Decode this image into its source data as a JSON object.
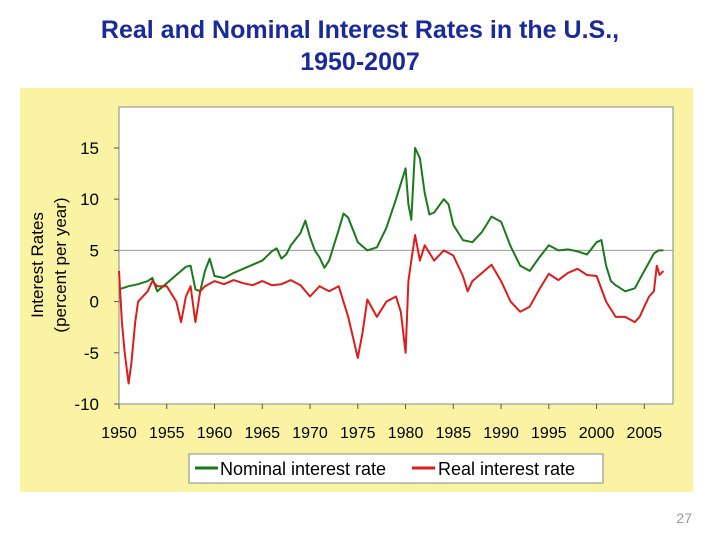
{
  "slide": {
    "title_line1": "Real and Nominal Interest Rates in the U.S.,",
    "title_line2": "1950-2007",
    "page_number": "27"
  },
  "colors": {
    "title": "#1a2a9a",
    "panel_background": "#fbf3a4",
    "plot_background": "#ffffff",
    "nominal": "#1a7a1a",
    "real": "#dd1c1c"
  },
  "chart_data": {
    "type": "line",
    "title": "",
    "xlabel": "",
    "ylabel": [
      "Interest Rates",
      "(percent per year)"
    ],
    "xlim": [
      1950,
      2008
    ],
    "ylim": [
      -10,
      19
    ],
    "x_tick_labels": [
      "1950",
      "1955",
      "1960",
      "1965",
      "1970",
      "1975",
      "1980",
      "1985",
      "1990",
      "1995",
      "2000",
      "2005"
    ],
    "x_tick_values": [
      1950,
      1955,
      1960,
      1965,
      1970,
      1975,
      1980,
      1985,
      1990,
      1995,
      2000,
      2005
    ],
    "y_tick_labels": [
      "15",
      "10",
      "5",
      "0",
      "-5",
      "-10"
    ],
    "y_tick_values": [
      15,
      10,
      5,
      0,
      -5,
      -10
    ],
    "reference_line_y": 5,
    "grid": false,
    "legend": "bottom",
    "series": [
      {
        "name": "Nominal interest rate",
        "color": "#1a7a1a",
        "x": [
          1950,
          1951,
          1952,
          1953,
          1953.5,
          1954,
          1955,
          1956,
          1957,
          1957.5,
          1958,
          1958.5,
          1959,
          1959.5,
          1960,
          1960.5,
          1961,
          1962,
          1963,
          1964,
          1965,
          1966,
          1966.5,
          1967,
          1967.5,
          1968,
          1969,
          1969.5,
          1970,
          1970.5,
          1971,
          1971.5,
          1972,
          1973,
          1973.5,
          1974,
          1974.5,
          1975,
          1976,
          1977,
          1978,
          1979,
          1979.5,
          1980,
          1980.3,
          1980.6,
          1981,
          1981.5,
          1982,
          1982.5,
          1983,
          1984,
          1984.5,
          1985,
          1986,
          1987,
          1988,
          1989,
          1990,
          1991,
          1992,
          1993,
          1994,
          1995,
          1996,
          1997,
          1998,
          1999,
          2000,
          2000.5,
          2001,
          2001.5,
          2002,
          2003,
          2004,
          2005,
          2006,
          2006.5,
          2007
        ],
        "y": [
          1.2,
          1.5,
          1.7,
          2.0,
          2.3,
          1.0,
          1.8,
          2.6,
          3.4,
          3.5,
          1.2,
          1.0,
          3.0,
          4.2,
          2.5,
          2.4,
          2.3,
          2.8,
          3.2,
          3.6,
          4.0,
          4.9,
          5.2,
          4.2,
          4.6,
          5.5,
          6.7,
          7.9,
          6.3,
          5.0,
          4.3,
          3.3,
          4.0,
          7.0,
          8.6,
          8.2,
          7.0,
          5.8,
          5.0,
          5.3,
          7.2,
          10.0,
          11.5,
          13.0,
          9.5,
          8.0,
          15.0,
          14.0,
          10.6,
          8.5,
          8.7,
          10.0,
          9.5,
          7.5,
          6.0,
          5.8,
          6.8,
          8.3,
          7.8,
          5.4,
          3.5,
          3.0,
          4.3,
          5.5,
          5.0,
          5.1,
          4.9,
          4.6,
          5.8,
          6.0,
          3.5,
          2.0,
          1.6,
          1.0,
          1.3,
          3.0,
          4.7,
          5.0,
          5.0
        ]
      },
      {
        "name": "Real interest rate",
        "color": "#dd1c1c",
        "x": [
          1950,
          1950.3,
          1950.6,
          1951,
          1951.3,
          1951.7,
          1952,
          1953,
          1953.5,
          1954,
          1955,
          1956,
          1956.5,
          1957,
          1957.5,
          1958,
          1958.5,
          1959,
          1960,
          1961,
          1962,
          1963,
          1964,
          1965,
          1966,
          1967,
          1968,
          1969,
          1970,
          1971,
          1972,
          1973,
          1974,
          1974.5,
          1975,
          1975.5,
          1976,
          1977,
          1978,
          1979,
          1979.5,
          1980,
          1980.3,
          1980.6,
          1981,
          1981.5,
          1982,
          1983,
          1984,
          1985,
          1986,
          1986.5,
          1987,
          1988,
          1989,
          1990,
          1991,
          1992,
          1993,
          1994,
          1995,
          1996,
          1997,
          1998,
          1999,
          2000,
          2001,
          2002,
          2003,
          2004,
          2004.5,
          2005,
          2005.5,
          2006,
          2006.3,
          2006.6,
          2007
        ],
        "y": [
          3.0,
          -2.0,
          -5.0,
          -8.0,
          -6.0,
          -2.0,
          0.0,
          1.0,
          2.0,
          1.5,
          1.5,
          0.0,
          -2.0,
          0.5,
          1.5,
          -2.0,
          1.0,
          1.5,
          2.0,
          1.7,
          2.1,
          1.8,
          1.6,
          2.0,
          1.6,
          1.7,
          2.1,
          1.6,
          0.5,
          1.5,
          1.0,
          1.5,
          -1.5,
          -3.5,
          -5.5,
          -3.0,
          0.2,
          -1.5,
          0.0,
          0.5,
          -1.0,
          -5.0,
          2.0,
          4.0,
          6.5,
          4.0,
          5.5,
          4.0,
          5.0,
          4.5,
          2.5,
          1.0,
          2.0,
          2.8,
          3.6,
          2.0,
          0.0,
          -1.0,
          -0.5,
          1.2,
          2.7,
          2.1,
          2.8,
          3.2,
          2.6,
          2.5,
          0.0,
          -1.5,
          -1.5,
          -2.0,
          -1.5,
          -0.5,
          0.5,
          1.0,
          3.5,
          2.6,
          3.0
        ]
      }
    ]
  }
}
